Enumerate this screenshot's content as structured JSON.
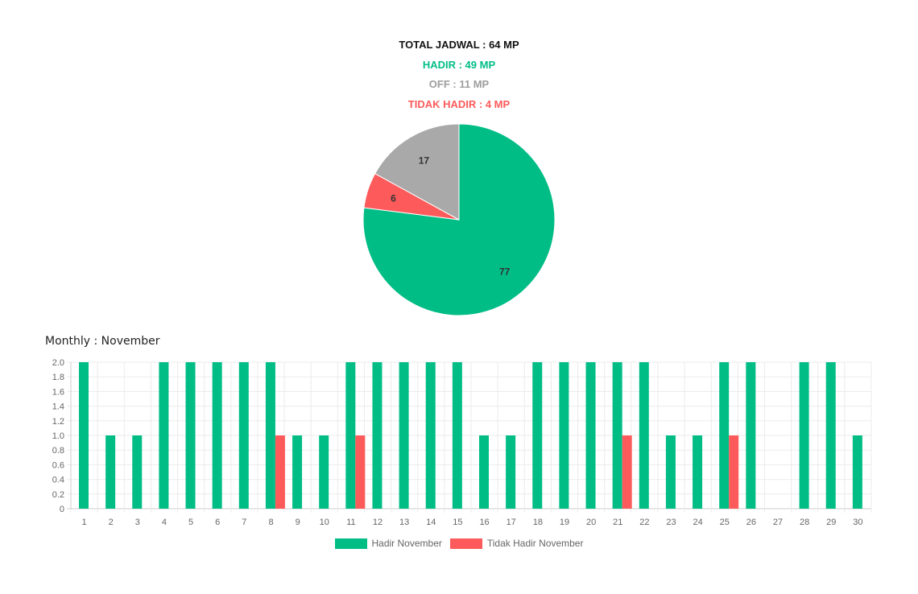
{
  "summary": {
    "total": "TOTAL JADWAL : 64 MP",
    "hadir": "HADIR : 49 MP",
    "off": "OFF : 11 MP",
    "tidak_hadir": "TIDAK HADIR : 4 MP"
  },
  "colors": {
    "hadir": "#00bd86",
    "tidak_hadir": "#fd5b5b",
    "off": "#a9a9a9",
    "total": "#111111",
    "summary_off_text": "#9e9e9e"
  },
  "monthly_title": "Monthly : November",
  "chart_data": [
    {
      "type": "pie",
      "labels": [
        "",
        "",
        ""
      ],
      "values": [
        77,
        6,
        17
      ],
      "colors": [
        "#00bd86",
        "#fd5b5b",
        "#a9a9a9"
      ],
      "data_labels": [
        "77",
        "6",
        "17"
      ],
      "title": ""
    },
    {
      "type": "bar",
      "title": "Monthly : November",
      "categories": [
        "1",
        "2",
        "3",
        "4",
        "5",
        "6",
        "7",
        "8",
        "9",
        "10",
        "11",
        "12",
        "13",
        "14",
        "15",
        "16",
        "17",
        "18",
        "19",
        "20",
        "21",
        "22",
        "23",
        "24",
        "25",
        "26",
        "27",
        "28",
        "29",
        "30"
      ],
      "series": [
        {
          "name": "Hadir November",
          "color": "#00bd86",
          "values": [
            2,
            1,
            1,
            2,
            2,
            2,
            2,
            2,
            1,
            1,
            2,
            2,
            2,
            2,
            2,
            1,
            1,
            2,
            2,
            2,
            2,
            2,
            1,
            1,
            2,
            2,
            0,
            2,
            2,
            1
          ]
        },
        {
          "name": "Tidak Hadir November",
          "color": "#fd5b5b",
          "values": [
            0,
            0,
            0,
            0,
            0,
            0,
            0,
            1,
            0,
            0,
            1,
            0,
            0,
            0,
            0,
            0,
            0,
            0,
            0,
            0,
            1,
            0,
            0,
            0,
            1,
            0,
            0,
            0,
            0,
            0
          ]
        }
      ],
      "ylim": [
        0,
        2.0
      ],
      "yticks": [
        "0",
        "0.2",
        "0.4",
        "0.6",
        "0.8",
        "1.0",
        "1.2",
        "1.4",
        "1.6",
        "1.8",
        "2.0"
      ],
      "grid": true,
      "legend": "bottom",
      "xlabel": "",
      "ylabel": ""
    }
  ]
}
